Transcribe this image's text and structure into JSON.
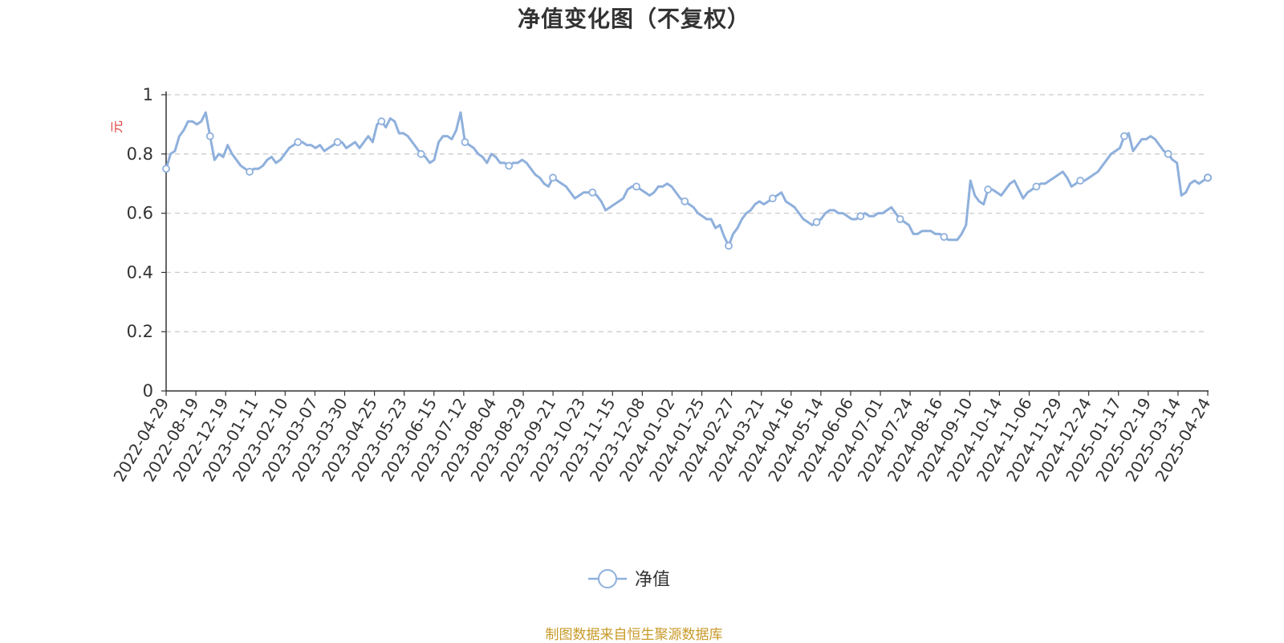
{
  "chart_data": {
    "type": "line",
    "title": "净值变化图（不复权）",
    "ylabel": "元",
    "ylim": [
      0,
      1
    ],
    "yticks": [
      0,
      0.2,
      0.4,
      0.6,
      0.8,
      1
    ],
    "grid": "dashed horizontal",
    "legend_position": "bottom-center",
    "source_note": "制图数据来自恒生聚源数据库",
    "xtick_labels": [
      "2022-04-29",
      "2022-08-19",
      "2022-12-19",
      "2023-01-11",
      "2023-02-10",
      "2023-03-07",
      "2023-03-30",
      "2023-04-25",
      "2023-05-23",
      "2023-06-15",
      "2023-07-12",
      "2023-08-04",
      "2023-08-29",
      "2023-09-21",
      "2023-10-23",
      "2023-11-15",
      "2023-12-08",
      "2024-01-02",
      "2024-01-25",
      "2024-02-27",
      "2024-03-21",
      "2024-04-16",
      "2024-05-14",
      "2024-06-06",
      "2024-07-01",
      "2024-07-24",
      "2024-08-16",
      "2024-09-10",
      "2024-10-14",
      "2024-11-06",
      "2024-11-29",
      "2024-12-24",
      "2025-01-17",
      "2025-02-19",
      "2025-03-14",
      "2025-04-24"
    ],
    "series": [
      {
        "name": "净值",
        "color": "#8fb0dc",
        "values": [
          0.75,
          0.8,
          0.81,
          0.86,
          0.88,
          0.91,
          0.91,
          0.9,
          0.91,
          0.94,
          0.86,
          0.78,
          0.8,
          0.79,
          0.83,
          0.8,
          0.78,
          0.76,
          0.75,
          0.74,
          0.75,
          0.75,
          0.76,
          0.78,
          0.79,
          0.77,
          0.78,
          0.8,
          0.82,
          0.83,
          0.84,
          0.84,
          0.83,
          0.83,
          0.82,
          0.83,
          0.81,
          0.82,
          0.83,
          0.84,
          0.84,
          0.82,
          0.83,
          0.84,
          0.82,
          0.84,
          0.86,
          0.84,
          0.9,
          0.91,
          0.89,
          0.92,
          0.91,
          0.87,
          0.87,
          0.86,
          0.84,
          0.82,
          0.8,
          0.79,
          0.77,
          0.78,
          0.84,
          0.86,
          0.86,
          0.85,
          0.88,
          0.94,
          0.84,
          0.83,
          0.82,
          0.8,
          0.79,
          0.77,
          0.8,
          0.79,
          0.77,
          0.77,
          0.76,
          0.77,
          0.77,
          0.78,
          0.77,
          0.75,
          0.73,
          0.72,
          0.7,
          0.69,
          0.72,
          0.71,
          0.7,
          0.69,
          0.67,
          0.65,
          0.66,
          0.67,
          0.67,
          0.67,
          0.66,
          0.64,
          0.61,
          0.62,
          0.63,
          0.64,
          0.65,
          0.68,
          0.69,
          0.69,
          0.68,
          0.67,
          0.66,
          0.67,
          0.69,
          0.69,
          0.7,
          0.69,
          0.67,
          0.65,
          0.64,
          0.63,
          0.62,
          0.6,
          0.59,
          0.58,
          0.58,
          0.55,
          0.56,
          0.52,
          0.49,
          0.53,
          0.55,
          0.58,
          0.6,
          0.61,
          0.63,
          0.64,
          0.63,
          0.64,
          0.65,
          0.66,
          0.67,
          0.64,
          0.63,
          0.62,
          0.6,
          0.58,
          0.57,
          0.56,
          0.57,
          0.58,
          0.6,
          0.61,
          0.61,
          0.6,
          0.6,
          0.59,
          0.58,
          0.58,
          0.59,
          0.6,
          0.59,
          0.59,
          0.6,
          0.6,
          0.61,
          0.62,
          0.6,
          0.58,
          0.57,
          0.56,
          0.53,
          0.53,
          0.54,
          0.54,
          0.54,
          0.53,
          0.53,
          0.52,
          0.51,
          0.51,
          0.51,
          0.53,
          0.56,
          0.71,
          0.66,
          0.64,
          0.63,
          0.68,
          0.68,
          0.67,
          0.66,
          0.68,
          0.7,
          0.71,
          0.68,
          0.65,
          0.67,
          0.68,
          0.69,
          0.7,
          0.7,
          0.71,
          0.72,
          0.73,
          0.74,
          0.72,
          0.69,
          0.7,
          0.71,
          0.71,
          0.72,
          0.73,
          0.74,
          0.76,
          0.78,
          0.8,
          0.81,
          0.82,
          0.86,
          0.87,
          0.81,
          0.83,
          0.85,
          0.85,
          0.86,
          0.85,
          0.83,
          0.81,
          0.8,
          0.78,
          0.77,
          0.66,
          0.67,
          0.7,
          0.71,
          0.7,
          0.71,
          0.72
        ],
        "marker_indices": [
          0,
          10,
          19,
          30,
          39,
          49,
          58,
          68,
          78,
          88,
          97,
          107,
          118,
          128,
          138,
          148,
          158,
          167,
          177,
          187,
          198,
          208,
          218,
          228,
          238,
          248,
          259,
          269,
          279,
          289,
          299,
          309,
          320,
          330,
          340,
          352
        ]
      }
    ]
  }
}
